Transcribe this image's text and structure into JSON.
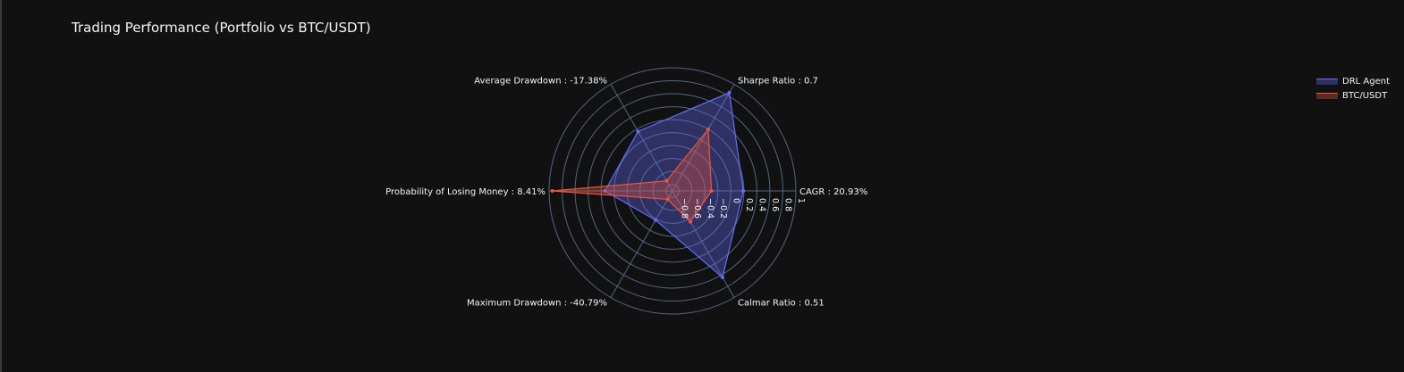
{
  "chart_data": {
    "type": "radar",
    "title": "Trading Performance (Portfolio vs BTC/USDT)",
    "axes": [
      "CAGR : 20.93%",
      "Sharpe Ratio : 0.7",
      "Average Drawdown : -17.38%",
      "Probability of Losing Money : 8.41%",
      "Maximum Drawdown : -40.79%",
      "Calmar Ratio : 0.51"
    ],
    "radial_range": [
      -0.9,
      1
    ],
    "radial_ticks": [
      "−0.8",
      "−0.6",
      "−0.4",
      "−0.2",
      "0",
      "0.2",
      "0.4",
      "0.6",
      "0.8",
      "1"
    ],
    "radial_tick_values": [
      -0.8,
      -0.6,
      -0.4,
      -0.2,
      0,
      0.2,
      0.4,
      0.6,
      0.8,
      1
    ],
    "series": [
      {
        "name": "DRL Agent",
        "values": [
          0.19,
          0.85,
          0.16,
          0.14,
          -0.38,
          0.64
        ],
        "color": "#636efa"
      },
      {
        "name": "BTC/USDT",
        "values": [
          -0.3,
          0.2,
          -0.72,
          0.95,
          -0.75,
          -0.35
        ],
        "color": "#ef553b"
      }
    ],
    "legend_position": "top-right",
    "grid": true
  }
}
